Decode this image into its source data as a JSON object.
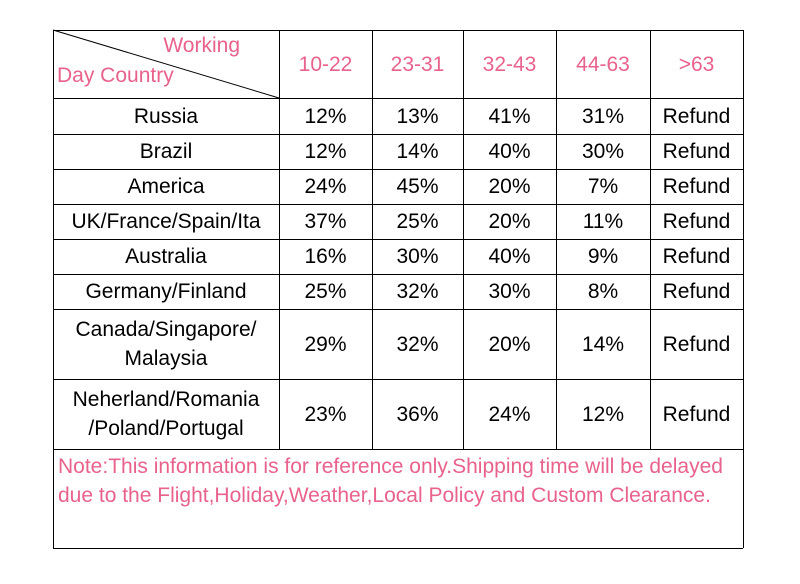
{
  "header": {
    "corner_top": "Working",
    "corner_bottom": "Day Country",
    "columns": [
      "10-22",
      "23-31",
      "32-43",
      "44-63",
      ">63"
    ]
  },
  "table": {
    "rows": [
      [
        "Russia",
        "12%",
        "13%",
        "41%",
        "31%",
        "Refund"
      ],
      [
        "Brazil",
        "12%",
        "14%",
        "40%",
        "30%",
        "Refund"
      ],
      [
        "America",
        "24%",
        "45%",
        "20%",
        "7%",
        "Refund"
      ],
      [
        "UK/France/Spain/Ita",
        "37%",
        "25%",
        "20%",
        "11%",
        "Refund"
      ],
      [
        "Australia",
        "16%",
        "30%",
        "40%",
        "9%",
        "Refund"
      ],
      [
        "Germany/Finland",
        "25%",
        "32%",
        "30%",
        "8%",
        "Refund"
      ],
      [
        "Canada/Singapore/\nMalaysia",
        "29%",
        "32%",
        "20%",
        "14%",
        "Refund"
      ],
      [
        "Neherland/Romania\n/Poland/Portugal",
        "23%",
        "36%",
        "24%",
        "12%",
        "Refund"
      ]
    ]
  },
  "note": "Note:This information is for reference only.Shipping time will be delayed due to the Flight,Holiday,Weather,Local Policy and Custom Clearance."
}
